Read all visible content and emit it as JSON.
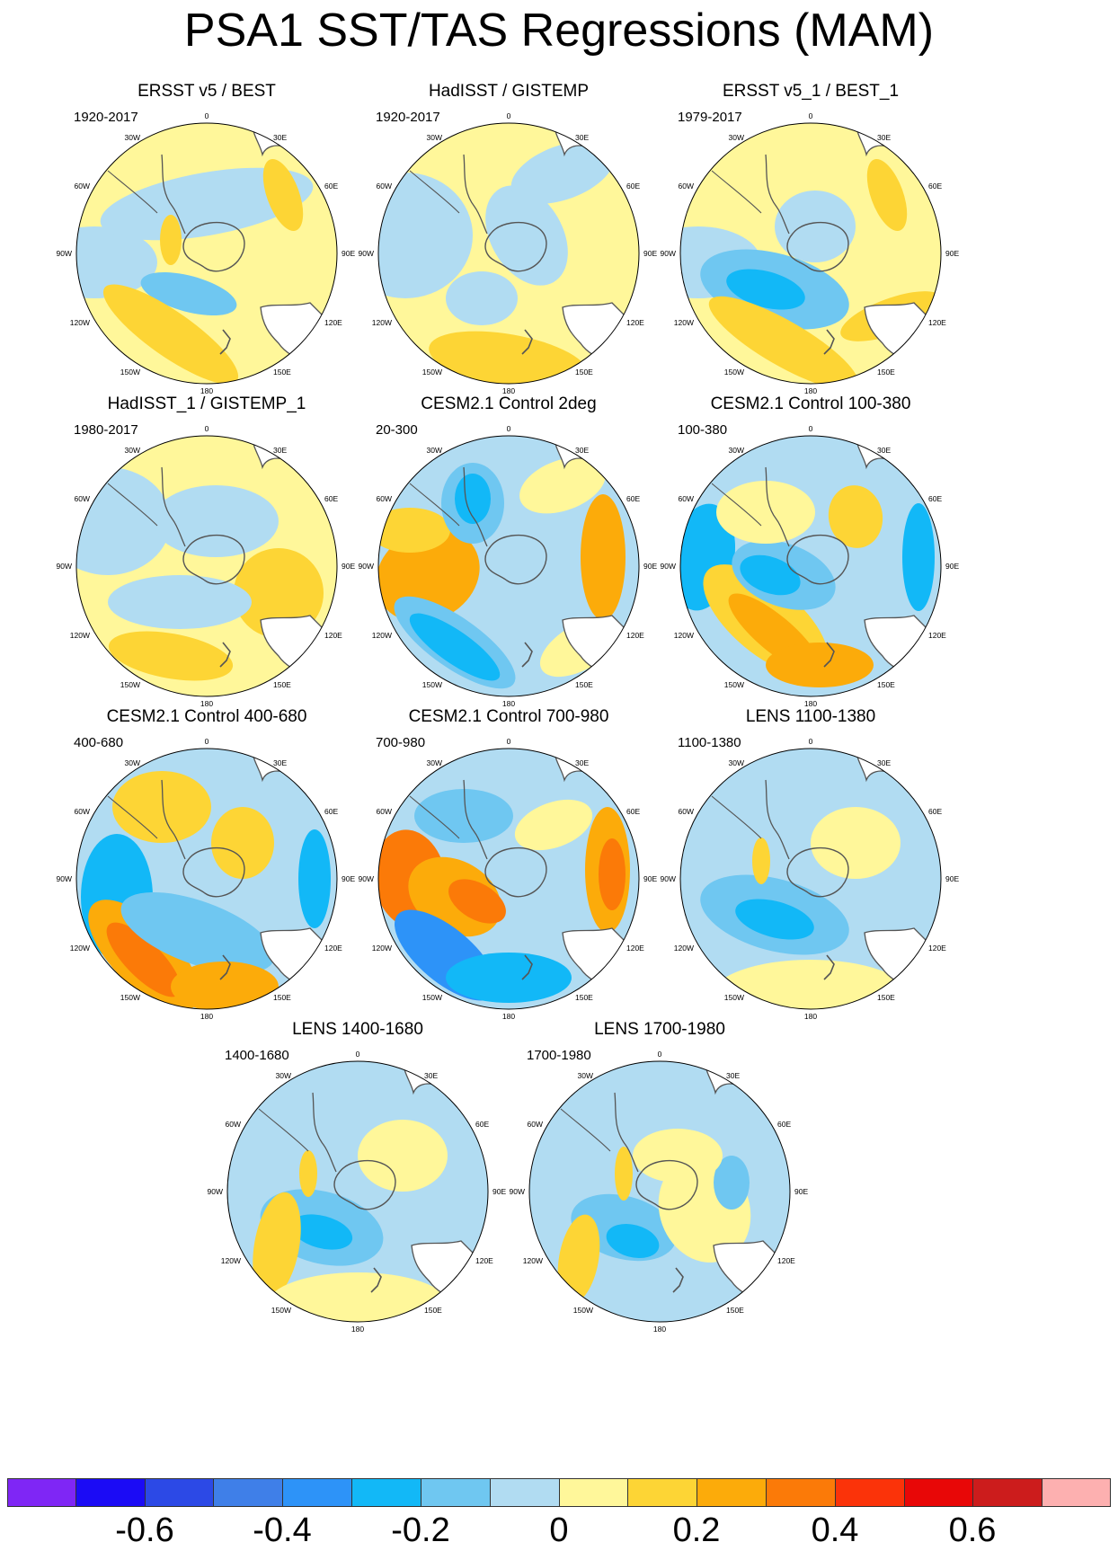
{
  "title": "PSA1 SST/TAS Regressions (MAM)",
  "map_labels": {
    "top": "0",
    "bottom": "180",
    "left_upper": "30W",
    "left_mid_upper": "60W",
    "left_mid": "90W",
    "left_mid_lower": "120W",
    "left_lower": "150W",
    "right_upper": "30E",
    "right_mid_upper": "60E",
    "right_mid": "90E",
    "right_mid_lower": "120E",
    "right_lower": "150E"
  },
  "panels": [
    {
      "title": "ERSST v5 / BEST",
      "period": "1920-2017"
    },
    {
      "title": "HadISST / GISTEMP",
      "period": "1920-2017"
    },
    {
      "title": "ERSST v5_1 / BEST_1",
      "period": "1979-2017"
    },
    {
      "title": "HadISST_1 / GISTEMP_1",
      "period": "1980-2017"
    },
    {
      "title": "CESM2.1 Control 2deg",
      "period": "20-300"
    },
    {
      "title": "CESM2.1 Control 100-380",
      "period": "100-380"
    },
    {
      "title": "CESM2.1 Control 400-680",
      "period": "400-680"
    },
    {
      "title": "CESM2.1 Control 700-980",
      "period": "700-980"
    },
    {
      "title": "LENS 1100-1380",
      "period": "1100-1380"
    },
    {
      "title": "LENS 1400-1680",
      "period": "1400-1680"
    },
    {
      "title": "LENS 1700-1980",
      "period": "1700-1980"
    }
  ],
  "colorbar": {
    "colors": [
      "#7f26f5",
      "#1b0bf5",
      "#2c49e6",
      "#3f7fe8",
      "#2d93f8",
      "#12b8f7",
      "#6fc7f1",
      "#b1dcf2",
      "#fff79a",
      "#fdd535",
      "#fcab0a",
      "#fb7a08",
      "#fb3309",
      "#e80707",
      "#cc1c1c",
      "#fdb0b0"
    ],
    "ticks": [
      "-0.6",
      "-0.4",
      "-0.2",
      "0",
      "0.2",
      "0.4",
      "0.6"
    ]
  },
  "palette": {
    "neutral_pos": "#fff79a",
    "neutral_neg": "#b1dcf2",
    "land": "#ffffff",
    "coast": "#555555"
  }
}
